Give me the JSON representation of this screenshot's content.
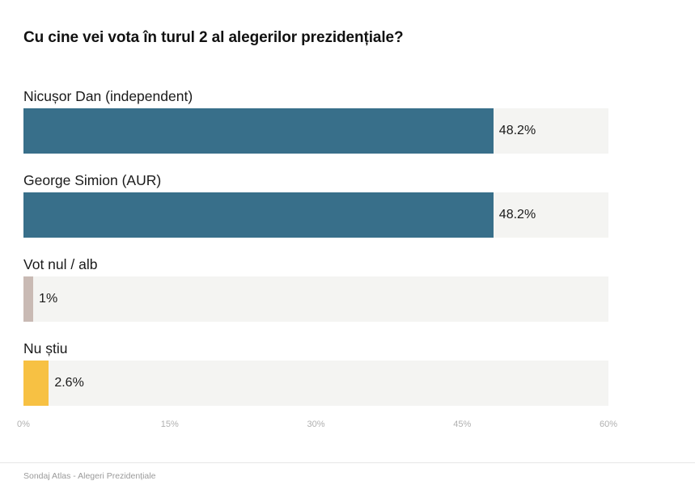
{
  "chart_data": {
    "type": "bar",
    "orientation": "horizontal",
    "title": "Cu cine vei vota în turul 2 al alegerilor prezidențiale?",
    "categories": [
      "Nicușor Dan (independent)",
      "George Simion (AUR)",
      "Vot nul / alb",
      "Nu știu"
    ],
    "values": [
      48.2,
      48.2,
      1,
      2.6
    ],
    "value_labels": [
      "48.2%",
      "48.2%",
      "1%",
      "2.6%"
    ],
    "colors": [
      "#386f8a",
      "#386f8a",
      "#c9bab4",
      "#f7c143"
    ],
    "xlim": [
      0,
      60
    ],
    "ticks": [
      0,
      15,
      30,
      45,
      60
    ],
    "tick_labels": [
      "0%",
      "15%",
      "30%",
      "45%",
      "60%"
    ],
    "track_color": "#f4f4f2",
    "grid": false,
    "legend": "none"
  },
  "footer": {
    "source": "Sondaj Atlas - Alegeri Prezidențiale"
  }
}
